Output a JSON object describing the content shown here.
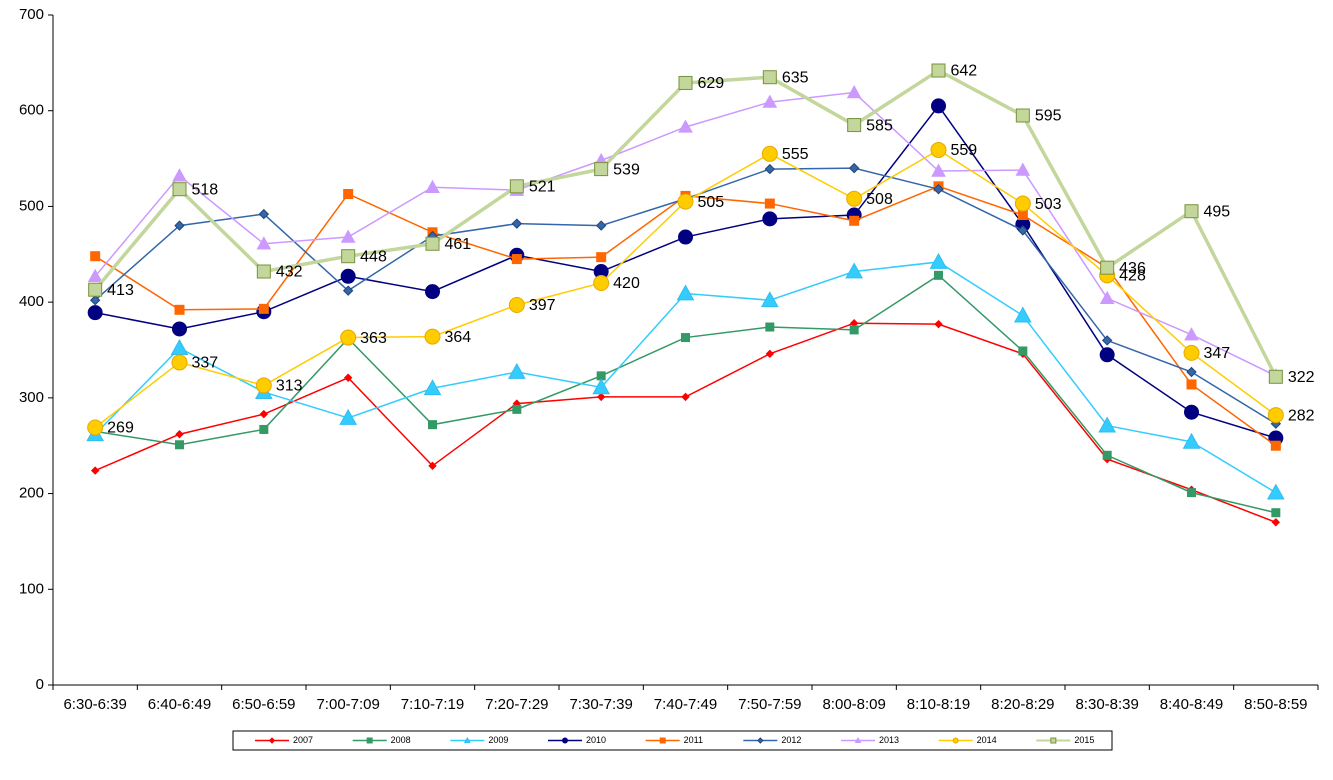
{
  "chart_data": {
    "type": "line",
    "categories": [
      "6:30-6:39",
      "6:40-6:49",
      "6:50-6:59",
      "7:00-7:09",
      "7:10-7:19",
      "7:20-7:29",
      "7:30-7:39",
      "7:40-7:49",
      "7:50-7:59",
      "8:00-8:09",
      "8:10-8:19",
      "8:20-8:29",
      "8:30-8:39",
      "8:40-8:49",
      "8:50-8:59"
    ],
    "ylim": [
      0,
      700
    ],
    "yticks": [
      0,
      100,
      200,
      300,
      400,
      500,
      600,
      700
    ],
    "grid": false,
    "legend": "bottom",
    "series": [
      {
        "name": "2007",
        "color": "#ff0000",
        "marker": "diamond",
        "values": [
          224,
          262,
          283,
          321,
          229,
          294,
          301,
          301,
          346,
          378,
          377,
          346,
          236,
          204,
          170
        ]
      },
      {
        "name": "2008",
        "color": "#339966",
        "marker": "square",
        "values": [
          265,
          251,
          267,
          362,
          272,
          288,
          323,
          363,
          374,
          371,
          428,
          349,
          240,
          201,
          180
        ]
      },
      {
        "name": "2009",
        "color": "#33ccff",
        "marker": "triangle",
        "values": [
          262,
          352,
          306,
          279,
          310,
          327,
          311,
          409,
          402,
          432,
          442,
          386,
          271,
          254,
          201
        ]
      },
      {
        "name": "2010",
        "color": "#000080",
        "marker": "circle",
        "values": [
          389,
          372,
          390,
          427,
          411,
          449,
          432,
          468,
          487,
          491,
          605,
          481,
          345,
          285,
          258
        ]
      },
      {
        "name": "2011",
        "color": "#ff6600",
        "marker": "square",
        "values": [
          448,
          392,
          393,
          513,
          473,
          445,
          447,
          511,
          503,
          485,
          521,
          491,
          436,
          314,
          250
        ]
      },
      {
        "name": "2012",
        "color": "#3366aa",
        "marker": "diamond",
        "values": [
          402,
          480,
          492,
          412,
          469,
          482,
          480,
          508,
          539,
          540,
          518,
          475,
          360,
          327,
          273
        ]
      },
      {
        "name": "2013",
        "color": "#cc99ff",
        "marker": "triangle",
        "values": [
          427,
          532,
          461,
          468,
          520,
          517,
          548,
          583,
          609,
          619,
          537,
          538,
          404,
          366,
          323
        ]
      },
      {
        "name": "2014",
        "color": "#ffcc00",
        "marker": "circle",
        "labels": true,
        "values": [
          269,
          337,
          313,
          363,
          364,
          397,
          420,
          505,
          555,
          508,
          559,
          503,
          428,
          347,
          282
        ]
      },
      {
        "name": "2015",
        "color": "#c3d69b",
        "marker": "square",
        "labels": true,
        "values": [
          413,
          518,
          432,
          448,
          461,
          521,
          539,
          629,
          635,
          585,
          642,
          595,
          436,
          495,
          322
        ]
      }
    ]
  }
}
